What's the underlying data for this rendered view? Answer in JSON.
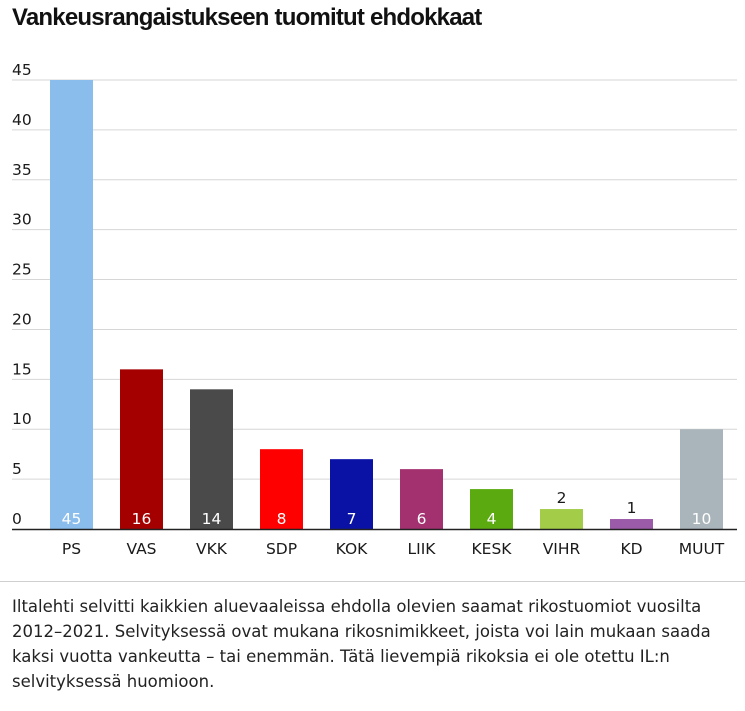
{
  "chart_data": {
    "type": "bar",
    "title": "Vankeusrangaistukseen tuomitut ehdokkaat",
    "categories": [
      "PS",
      "VAS",
      "VKK",
      "SDP",
      "KOK",
      "LIIK",
      "KESK",
      "VIHR",
      "KD",
      "MUUT"
    ],
    "values": [
      45,
      16,
      14,
      8,
      7,
      6,
      4,
      2,
      1,
      10
    ],
    "value_labels": [
      "45",
      "16",
      "14",
      "8",
      "7",
      "6",
      "4",
      "2",
      "1",
      "10"
    ],
    "colors": [
      "#8bbdec",
      "#a50000",
      "#4a4a4a",
      "#ff0000",
      "#0a12a6",
      "#a3306f",
      "#5aaa10",
      "#a3cc48",
      "#9c5ba8",
      "#a9b5ba"
    ],
    "yticks": [
      "0",
      "5",
      "10",
      "15",
      "20",
      "25",
      "30",
      "35",
      "40",
      "45"
    ],
    "ylim": [
      0,
      45
    ],
    "xlabel": "",
    "ylabel": "",
    "grid": true,
    "legend": "none"
  },
  "caption": "Iltalehti selvitti kaikkien aluevaaleissa ehdolla olevien saamat rikostuomiot vuosilta 2012–2021. Selvityksessä ovat mukana rikosnimikkeet, joista voi lain mukaan saada kaksi vuotta vankeutta – tai enemmän. Tätä lievempiä rikoksia ei ole otettu IL:n selvityksessä huomioon."
}
